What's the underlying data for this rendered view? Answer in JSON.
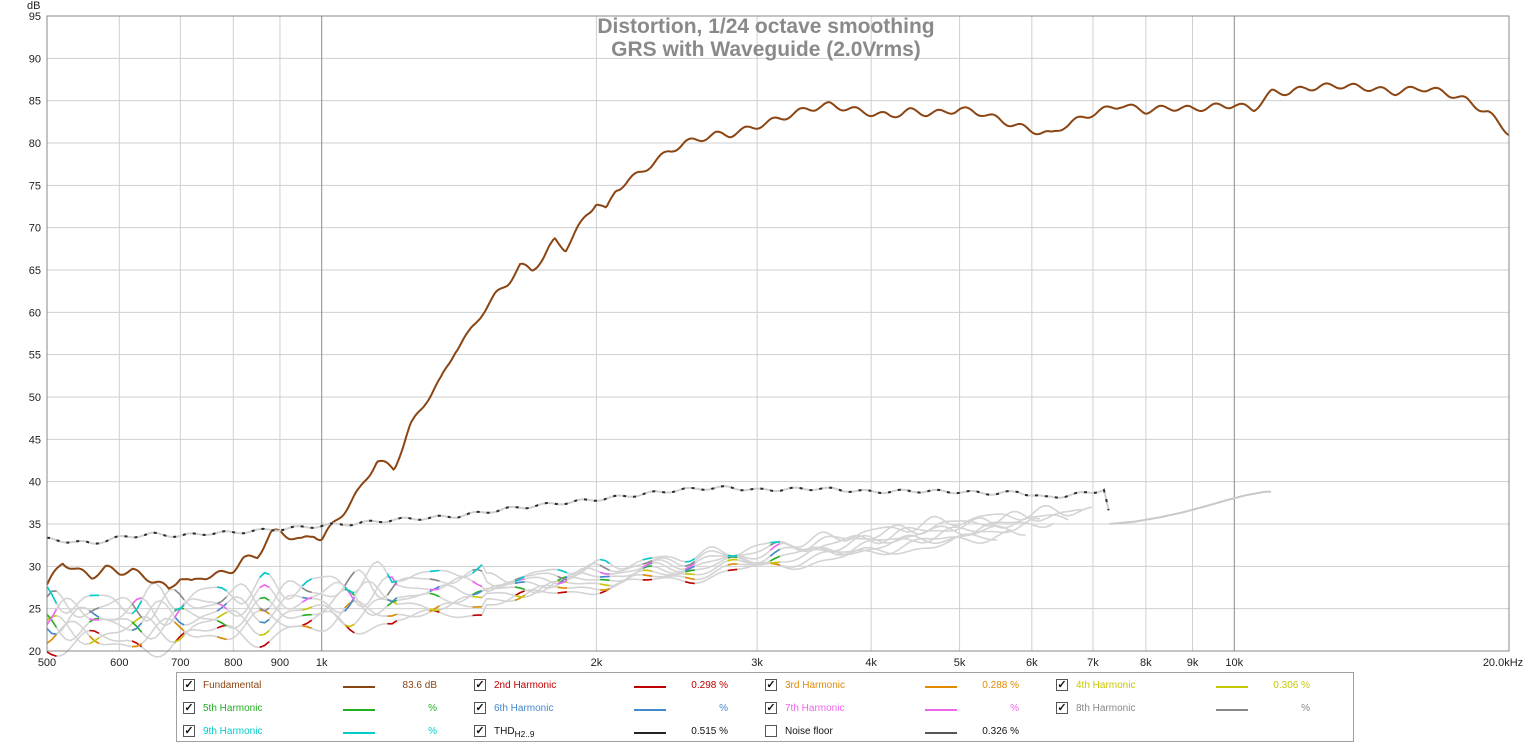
{
  "chart_data": {
    "type": "line",
    "title": "Distortion, 1/24 octave smoothing",
    "subtitle": "GRS with Waveguide (2.0Vrms)",
    "ylabel": "dB",
    "xunit": "kHz",
    "xscale": "log",
    "xlim": [
      500,
      20000
    ],
    "ylim": [
      20,
      95
    ],
    "y_ticks": [
      "20",
      "25",
      "30",
      "35",
      "40",
      "45",
      "50",
      "55",
      "60",
      "65",
      "70",
      "75",
      "80",
      "85",
      "90",
      "95"
    ],
    "x_ticks": [
      {
        "v": 500,
        "label": "500"
      },
      {
        "v": 600,
        "label": "600"
      },
      {
        "v": 700,
        "label": "700"
      },
      {
        "v": 800,
        "label": "800"
      },
      {
        "v": 900,
        "label": "900"
      },
      {
        "v": 1000,
        "label": "1k"
      },
      {
        "v": 2000,
        "label": "2k"
      },
      {
        "v": 3000,
        "label": "3k"
      },
      {
        "v": 4000,
        "label": "4k"
      },
      {
        "v": 5000,
        "label": "5k"
      },
      {
        "v": 6000,
        "label": "6k"
      },
      {
        "v": 7000,
        "label": "7k"
      },
      {
        "v": 8000,
        "label": "8k"
      },
      {
        "v": 9000,
        "label": "9k"
      },
      {
        "v": 10000,
        "label": "10k"
      },
      {
        "v": 20000,
        "label": "20.0kHz"
      }
    ],
    "series": [
      {
        "name": "Fundamental",
        "color": "#8b4513",
        "x": [
          500,
          520,
          540,
          560,
          580,
          600,
          620,
          640,
          660,
          680,
          700,
          720,
          740,
          760,
          780,
          800,
          820,
          850,
          880,
          900,
          920,
          950,
          980,
          1000,
          1030,
          1060,
          1100,
          1150,
          1200,
          1250,
          1300,
          1350,
          1400,
          1450,
          1500,
          1550,
          1600,
          1650,
          1700,
          1750,
          1800,
          1850,
          1900,
          1950,
          2000,
          2050,
          2100,
          2200,
          2300,
          2400,
          2500,
          2600,
          2700,
          2800,
          2900,
          3000,
          3200,
          3400,
          3600,
          3800,
          4000,
          4200,
          4400,
          4600,
          4800,
          5000,
          5300,
          5600,
          6000,
          6300,
          6500,
          7000,
          7500,
          8000,
          8500,
          9000,
          9500,
          10000,
          10500,
          11000,
          11500,
          12000,
          13000,
          14000,
          15000,
          16000,
          17000,
          18000,
          19000,
          20000
        ],
        "y": [
          27.8,
          30.5,
          29.5,
          28.8,
          29.8,
          29.3,
          29.5,
          28.7,
          28.2,
          27.2,
          28.8,
          28.0,
          28.8,
          28.9,
          29.2,
          29.6,
          30.8,
          31.2,
          33.9,
          34.1,
          33.6,
          33.0,
          33.8,
          33.2,
          35.0,
          36.6,
          39.0,
          42.5,
          41.5,
          46.5,
          49.5,
          52.0,
          55.5,
          57.5,
          60.0,
          62.0,
          63.5,
          65.5,
          65.0,
          66.5,
          68.5,
          67.5,
          69.5,
          71.5,
          73.0,
          72.0,
          74.5,
          76.0,
          77.5,
          79.0,
          80.0,
          80.5,
          81.0,
          81.0,
          81.5,
          82.0,
          83.0,
          84.0,
          84.5,
          84.0,
          83.5,
          83.2,
          83.8,
          83.5,
          83.6,
          84.0,
          83.5,
          82.5,
          81.5,
          81.0,
          82.0,
          83.5,
          84.5,
          83.8,
          84.2,
          84.0,
          84.3,
          84.5,
          84.0,
          86.0,
          86.0,
          86.5,
          86.8,
          86.5,
          86.0,
          86.5,
          86.0,
          85.0,
          83.5,
          81.2
        ]
      },
      {
        "name": "THD",
        "color": "#2a2a2a",
        "x": [
          500,
          560,
          600,
          650,
          700,
          750,
          800,
          900,
          1000,
          1100,
          1200,
          1400,
          1600,
          1800,
          2000,
          2200,
          2400,
          2600,
          2800,
          3000,
          3500,
          4000,
          4500,
          5000,
          5500,
          5800,
          6200,
          6600,
          7000,
          7200,
          7300
        ],
        "y": [
          33.2,
          32.7,
          33.4,
          33.8,
          33.6,
          33.9,
          34.0,
          34.4,
          34.8,
          35.1,
          35.5,
          35.9,
          36.8,
          37.4,
          37.9,
          38.4,
          38.9,
          39.2,
          39.3,
          39.0,
          39.2,
          38.8,
          38.9,
          38.8,
          38.6,
          38.8,
          38.1,
          38.4,
          38.8,
          39.1,
          36.0
        ]
      },
      {
        "name": "Noise floor",
        "color": "#c8c8c8",
        "x": [
          7300,
          7800,
          8300,
          8800,
          9300,
          9800,
          10300,
          10800,
          11000
        ],
        "y": [
          35.0,
          35.3,
          35.8,
          36.4,
          37.1,
          37.8,
          38.4,
          38.8,
          38.8
        ]
      }
    ],
    "harmonic_base": {
      "x": [
        500,
        600,
        700,
        800,
        900,
        1000,
        1100,
        1200,
        1400,
        1600,
        1800,
        2000,
        2200,
        2500,
        2800,
        3000,
        3300,
        3600,
        4000,
        4500,
        5000,
        5500,
        6000,
        6500,
        7000
      ],
      "y": [
        23.5,
        23.3,
        23.9,
        24.5,
        25.0,
        25.5,
        26.0,
        26.3,
        26.8,
        27.4,
        28.1,
        28.7,
        29.2,
        29.9,
        30.5,
        31.0,
        31.6,
        32.1,
        32.8,
        33.6,
        34.2,
        34.6,
        35.0,
        35.3,
        35.5
      ]
    }
  },
  "legend": [
    {
      "name": "Fundamental",
      "value": "83.6 dB",
      "color": "#8b4513",
      "checked": true
    },
    {
      "name": "2nd Harmonic",
      "value": "0.298 %",
      "color": "#c00000",
      "checked": true
    },
    {
      "name": "3rd Harmonic",
      "value": "0.288 %",
      "color": "#e08a00",
      "checked": true
    },
    {
      "name": "4th Harmonic",
      "value": "0.306 %",
      "color": "#c8c800",
      "checked": true
    },
    {
      "name": "5th Harmonic",
      "value": "%",
      "color": "#22b022",
      "checked": true
    },
    {
      "name": "6th Harmonic",
      "value": "%",
      "color": "#4488cc",
      "checked": true
    },
    {
      "name": "7th Harmonic",
      "value": "%",
      "color": "#ee66ee",
      "checked": true
    },
    {
      "name": "8th Harmonic",
      "value": "%",
      "color": "#888888",
      "checked": true
    },
    {
      "name": "9th Harmonic",
      "value": "%",
      "color": "#00cccc",
      "checked": true
    },
    {
      "name": "THD",
      "name_sub": "H2..9",
      "value": "0.515 %",
      "color": "#222222",
      "checked": true
    },
    {
      "name": "Noise floor",
      "value": "0.326 %",
      "color": "#555555",
      "checked": false
    }
  ]
}
